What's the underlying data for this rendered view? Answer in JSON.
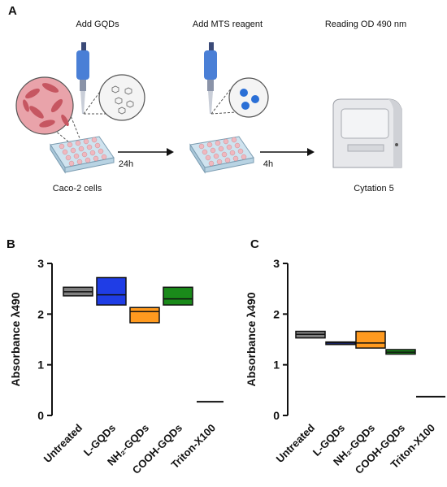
{
  "panels": {
    "a": "A",
    "b": "B",
    "c": "C"
  },
  "schematic": {
    "steps": [
      "Add GQDs",
      "Add MTS reagent",
      "Reading OD 490 nm"
    ],
    "times": [
      "24h",
      "4h"
    ],
    "cells_label": "Caco-2 cells",
    "instrument_label": "Cytation 5"
  },
  "colors": {
    "Untreated": "#808080",
    "L-GQDs": "#1f3de6",
    "NH2-GQDs": "#ff9a1f",
    "COOH-GQDs": "#1a8a1a",
    "Triton-X100": "#111111"
  },
  "chart_data": [
    {
      "type": "box",
      "panel": "B",
      "ylabel": "Absorbance λ490",
      "ylim": [
        0,
        3
      ],
      "yticks": [
        0,
        1,
        2,
        3
      ],
      "categories": [
        "Untreated",
        "L-GQDs",
        "NH₂-GQDs",
        "COOH-GQDs",
        "Triton-X100"
      ],
      "boxes": [
        {
          "min": 2.36,
          "median": 2.44,
          "max": 2.53
        },
        {
          "min": 2.18,
          "median": 2.38,
          "max": 2.72
        },
        {
          "min": 1.83,
          "median": 2.05,
          "max": 2.13
        },
        {
          "min": 2.18,
          "median": 2.3,
          "max": 2.53
        },
        {
          "min": 0.27,
          "median": 0.27,
          "max": 0.27
        }
      ]
    },
    {
      "type": "box",
      "panel": "C",
      "ylabel": "Absorbance λ490",
      "ylim": [
        0,
        3
      ],
      "yticks": [
        0,
        1,
        2,
        3
      ],
      "categories": [
        "Untreated",
        "L-GQDs",
        "NH₂-GQDs",
        "COOH-GQDs",
        "Triton-X100"
      ],
      "boxes": [
        {
          "min": 1.53,
          "median": 1.6,
          "max": 1.66
        },
        {
          "min": 1.4,
          "median": 1.43,
          "max": 1.45
        },
        {
          "min": 1.33,
          "median": 1.43,
          "max": 1.66
        },
        {
          "min": 1.21,
          "median": 1.25,
          "max": 1.3
        },
        {
          "min": 0.37,
          "median": 0.37,
          "max": 0.37
        }
      ]
    }
  ]
}
